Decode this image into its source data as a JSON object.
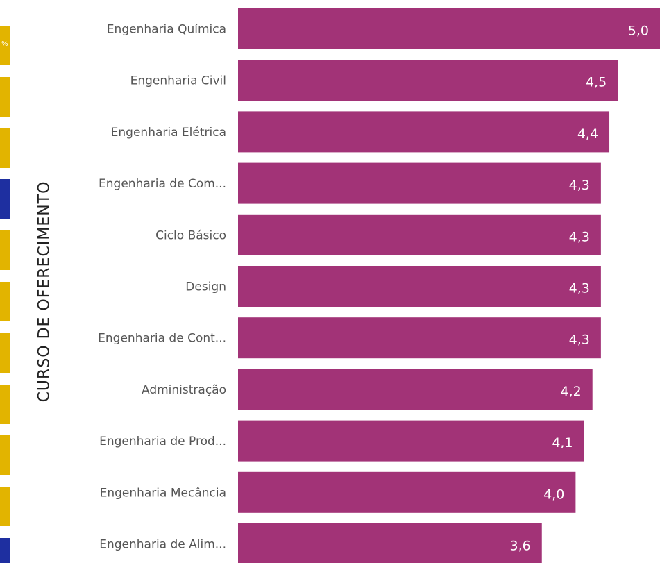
{
  "left_strip": {
    "blocks": [
      "#e2b400",
      "#e2b400",
      "#e2b400",
      "#1e2fa0",
      "#e2b400",
      "#e2b400",
      "#e2b400",
      "#e2b400",
      "#e2b400",
      "#e2b400",
      "#1e2fa0"
    ],
    "mark": "%"
  },
  "chart_data": {
    "type": "bar",
    "orientation": "horizontal",
    "ylabel": "CURSO DE OFERECIMENTO",
    "xlim": [
      0,
      5
    ],
    "grid": false,
    "legend": "none",
    "bar_color": "#a23377",
    "label_color": "#ffffff",
    "categories": [
      "Engenharia Química",
      "Engenharia Civil",
      "Engenharia Elétrica",
      "Engenharia de Com...",
      "Ciclo Básico",
      "Design",
      "Engenharia de Cont...",
      "Administração",
      "Engenharia de Prod...",
      "Engenharia Mecância",
      "Engenharia de Alim..."
    ],
    "values": [
      5.0,
      4.5,
      4.4,
      4.3,
      4.3,
      4.3,
      4.3,
      4.2,
      4.1,
      4.0,
      3.6
    ],
    "value_labels": [
      "5,0",
      "4,5",
      "4,4",
      "4,3",
      "4,3",
      "4,3",
      "4,3",
      "4,2",
      "4,1",
      "4,0",
      "3,6"
    ]
  }
}
